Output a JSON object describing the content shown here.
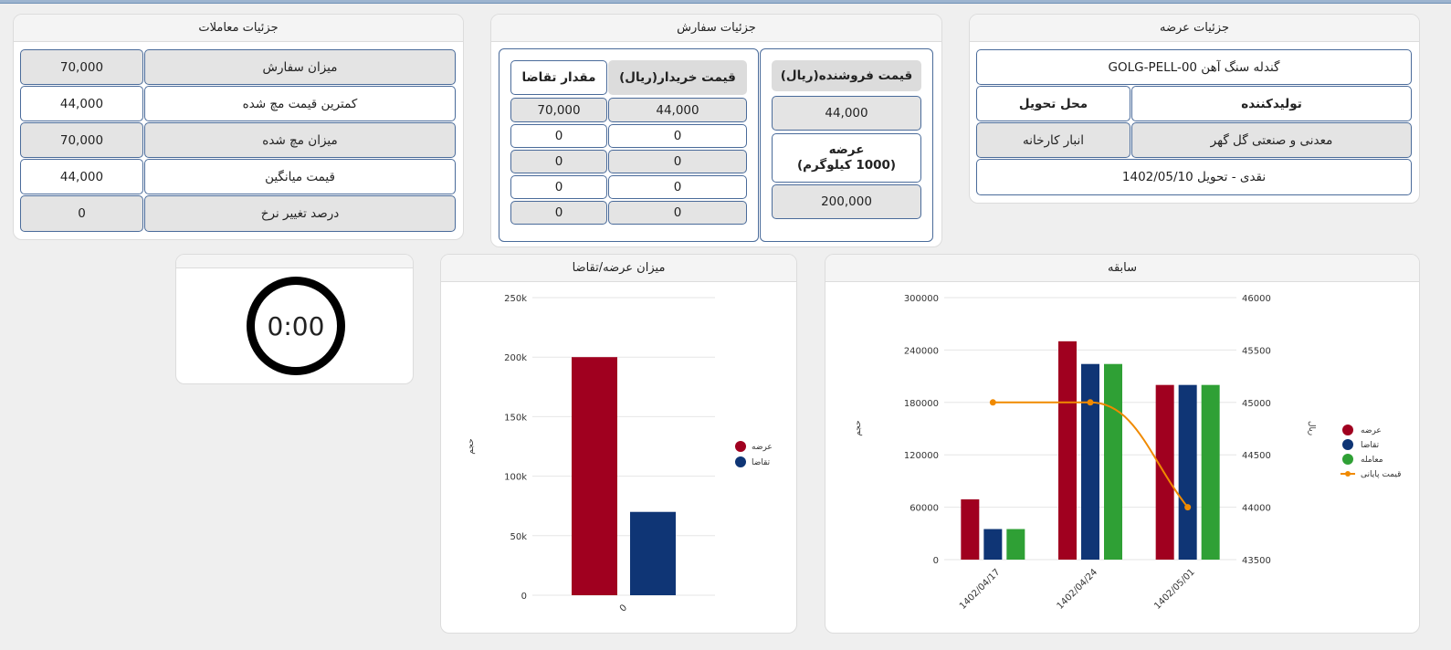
{
  "supply_details": {
    "title": "جزئیات عرضه",
    "product": "گندله سنگ آهن GOLG-PELL-00",
    "producer_header": "تولیدکننده",
    "delivery_place_header": "محل تحویل",
    "producer": "معدنی و صنعتی گل گهر",
    "delivery_place": "انبار کارخانه",
    "settlement": "نقدی - تحویل 1402/05/10"
  },
  "order_details": {
    "title": "جزئیات سفارش",
    "seller_price_header": "قیمت فروشنده(ریال)",
    "seller_price": "44,000",
    "supply_header_line1": "عرضه",
    "supply_header_line2": "(1000 کیلوگرم)",
    "supply_value": "200,000",
    "buyer_price_header": "قیمت خریدار(ریال)",
    "demand_qty_header": "مقدار تقاضا",
    "rows": [
      {
        "buyer_price": "44,000",
        "demand_qty": "70,000"
      },
      {
        "buyer_price": "0",
        "demand_qty": "0"
      },
      {
        "buyer_price": "0",
        "demand_qty": "0"
      },
      {
        "buyer_price": "0",
        "demand_qty": "0"
      },
      {
        "buyer_price": "0",
        "demand_qty": "0"
      }
    ]
  },
  "trade_details": {
    "title": "جزئیات معاملات",
    "rows": [
      {
        "label": "میزان سفارش",
        "value": "70,000"
      },
      {
        "label": "کمترین قیمت مچ شده",
        "value": "44,000"
      },
      {
        "label": "میزان مچ شده",
        "value": "70,000"
      },
      {
        "label": "قیمت میانگین",
        "value": "44,000"
      },
      {
        "label": "درصد تغییر نرخ",
        "value": "0"
      }
    ]
  },
  "timer": {
    "value": "0:00"
  },
  "history_panel": {
    "title": "سابقه"
  },
  "supply_demand_panel": {
    "title": "میزان عرضه/تقاضا"
  },
  "chart_data": [
    {
      "type": "bar",
      "title": "سابقه",
      "categories": [
        "1402/04/17",
        "1402/04/24",
        "1402/05/01"
      ],
      "series": [
        {
          "name": "عرضه",
          "values": [
            69000,
            250000,
            200000
          ],
          "color": "#a0001f"
        },
        {
          "name": "تقاضا",
          "values": [
            35000,
            224000,
            200000
          ],
          "color": "#0f3575"
        },
        {
          "name": "معامله",
          "values": [
            35000,
            224000,
            200000
          ],
          "color": "#2fa035"
        },
        {
          "name": "قیمت پایانی",
          "type": "line",
          "axis": "right",
          "values": [
            45000,
            45000,
            44000
          ],
          "color": "#f08a00"
        }
      ],
      "ylabel": "حجم",
      "ylabel_right": "ریال",
      "ylim": [
        0,
        300000
      ],
      "ylim_right": [
        43500,
        46000
      ],
      "yticks": [
        "300000",
        "240000",
        "180000",
        "120000",
        "60000",
        "0"
      ],
      "yticks_right": [
        "46000",
        "45500",
        "45000",
        "44500",
        "44000",
        "43500"
      ],
      "legend": "right",
      "grid": true
    },
    {
      "type": "bar",
      "title": "میزان عرضه/تقاضا",
      "categories": [
        "0"
      ],
      "series": [
        {
          "name": "عرضه",
          "values": [
            200000
          ],
          "color": "#a0001f"
        },
        {
          "name": "تقاضا",
          "values": [
            70000
          ],
          "color": "#0f3575"
        }
      ],
      "ylabel": "حجم",
      "ylim": [
        0,
        250000
      ],
      "yticks": [
        "250k",
        "200k",
        "150k",
        "100k",
        "50k",
        "0"
      ],
      "legend": "right",
      "grid": true
    }
  ]
}
